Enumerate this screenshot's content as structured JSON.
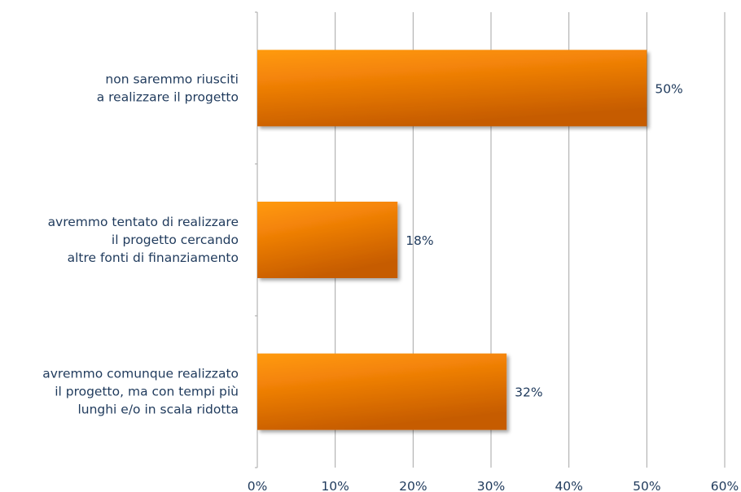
{
  "chart_data": {
    "type": "bar",
    "orientation": "horizontal",
    "categories": [
      [
        "non saremmo riusciti",
        "a realizzare il progetto"
      ],
      [
        "avremmo tentato di realizzare",
        "il progetto cercando",
        "altre fonti di finanziamento"
      ],
      [
        "avremmo comunque realizzato",
        "il progetto, ma con tempi più",
        "lunghi e/o in scala ridotta"
      ]
    ],
    "values": [
      50,
      18,
      32
    ],
    "value_labels": [
      "50%",
      "18%",
      "32%"
    ],
    "xlim": [
      0,
      60
    ],
    "x_ticks": [
      0,
      10,
      20,
      30,
      40,
      50,
      60
    ],
    "x_tick_labels": [
      "0%",
      "10%",
      "20%",
      "30%",
      "40%",
      "50%",
      "60%"
    ],
    "grid": true,
    "colors": {
      "bar_light": "#ff9a0c",
      "bar_dark": "#c65c00",
      "text": "#1f3a5c",
      "grid": "#a6a6a6"
    }
  }
}
